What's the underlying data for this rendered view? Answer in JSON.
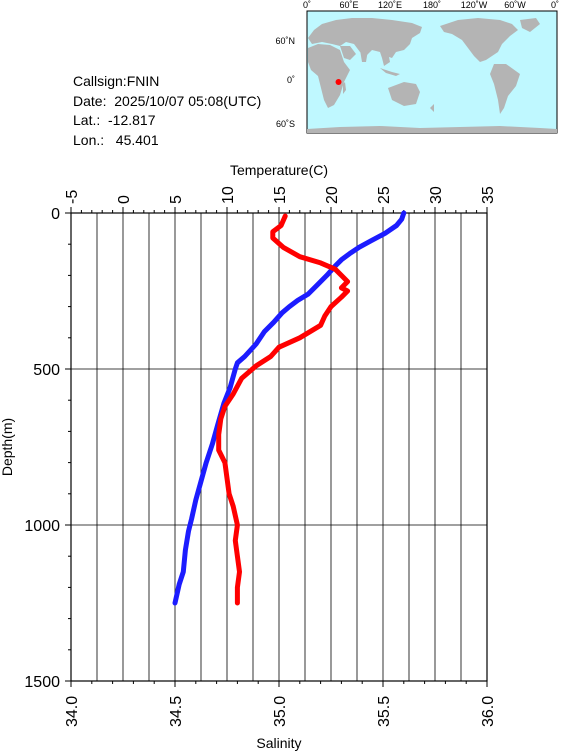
{
  "station": {
    "callsign": "Callsign:FNIN",
    "date": "Date:  2025/10/07 05:08(UTC)",
    "lat": "Lat.:  -12.817",
    "lon": "Lon.:   45.401"
  },
  "map": {
    "lon_labels": [
      "0˚",
      "60˚E",
      "120˚E",
      "180˚",
      "120˚W",
      "60˚W",
      "0˚"
    ],
    "lat_labels": [
      "60˚N",
      "0˚",
      "60˚S"
    ],
    "ocean_color": "#bff8ff",
    "land_color": "#b4b4b4",
    "marker_color": "#ff0000",
    "marker_position": {
      "lat": -12.817,
      "lon": 45.401
    }
  },
  "chart_data": {
    "type": "line",
    "ylabel": "Depth(m)",
    "top_xlabel": "Temperature(C)",
    "bottom_xlabel": "Salinity",
    "ylim": [
      0,
      1500
    ],
    "y_inverted": true,
    "y_ticks": [
      "0",
      "500",
      "1000",
      "1500"
    ],
    "temperature_xlim": [
      -5,
      35
    ],
    "temperature_ticks": [
      "-5",
      "0",
      "5",
      "10",
      "15",
      "20",
      "25",
      "30",
      "35"
    ],
    "salinity_xlim": [
      34.0,
      36.0
    ],
    "salinity_ticks": [
      "34.0",
      "34.5",
      "35.0",
      "35.5",
      "36.0"
    ],
    "grid": true,
    "series": [
      {
        "axis": "temperature",
        "color": "#1c1cff",
        "points": [
          [
            27.0,
            0
          ],
          [
            26.8,
            20
          ],
          [
            26.3,
            40
          ],
          [
            25.2,
            65
          ],
          [
            23.8,
            90
          ],
          [
            22.7,
            110
          ],
          [
            21.8,
            130
          ],
          [
            21.0,
            150
          ],
          [
            20.4,
            170
          ],
          [
            19.6,
            200
          ],
          [
            18.7,
            230
          ],
          [
            17.8,
            260
          ],
          [
            16.8,
            280
          ],
          [
            16.0,
            300
          ],
          [
            15.3,
            320
          ],
          [
            14.5,
            350
          ],
          [
            13.6,
            380
          ],
          [
            12.8,
            420
          ],
          [
            11.7,
            460
          ],
          [
            11.0,
            480
          ],
          [
            10.8,
            500
          ],
          [
            10.3,
            560
          ],
          [
            9.7,
            610
          ],
          [
            9.1,
            680
          ],
          [
            8.6,
            740
          ],
          [
            8.0,
            800
          ],
          [
            7.5,
            860
          ],
          [
            7.0,
            920
          ],
          [
            6.6,
            980
          ],
          [
            6.3,
            1020
          ],
          [
            6.0,
            1080
          ],
          [
            5.8,
            1150
          ],
          [
            5.4,
            1190
          ],
          [
            5.0,
            1250
          ]
        ]
      },
      {
        "axis": "salinity",
        "color": "#ff0000",
        "points": [
          [
            35.03,
            10
          ],
          [
            35.01,
            40
          ],
          [
            34.97,
            60
          ],
          [
            34.97,
            80
          ],
          [
            35.02,
            110
          ],
          [
            35.1,
            140
          ],
          [
            35.2,
            160
          ],
          [
            35.27,
            180
          ],
          [
            35.3,
            200
          ],
          [
            35.33,
            220
          ],
          [
            35.3,
            240
          ],
          [
            35.33,
            250
          ],
          [
            35.3,
            270
          ],
          [
            35.25,
            300
          ],
          [
            35.22,
            330
          ],
          [
            35.2,
            360
          ],
          [
            35.1,
            400
          ],
          [
            35.0,
            430
          ],
          [
            34.96,
            460
          ],
          [
            34.89,
            490
          ],
          [
            34.82,
            530
          ],
          [
            34.78,
            580
          ],
          [
            34.74,
            620
          ],
          [
            34.72,
            660
          ],
          [
            34.71,
            710
          ],
          [
            34.71,
            760
          ],
          [
            34.74,
            800
          ],
          [
            34.75,
            850
          ],
          [
            34.76,
            900
          ],
          [
            34.78,
            940
          ],
          [
            34.8,
            1000
          ],
          [
            34.79,
            1050
          ],
          [
            34.8,
            1100
          ],
          [
            34.81,
            1150
          ],
          [
            34.8,
            1200
          ],
          [
            34.8,
            1250
          ]
        ]
      }
    ]
  }
}
